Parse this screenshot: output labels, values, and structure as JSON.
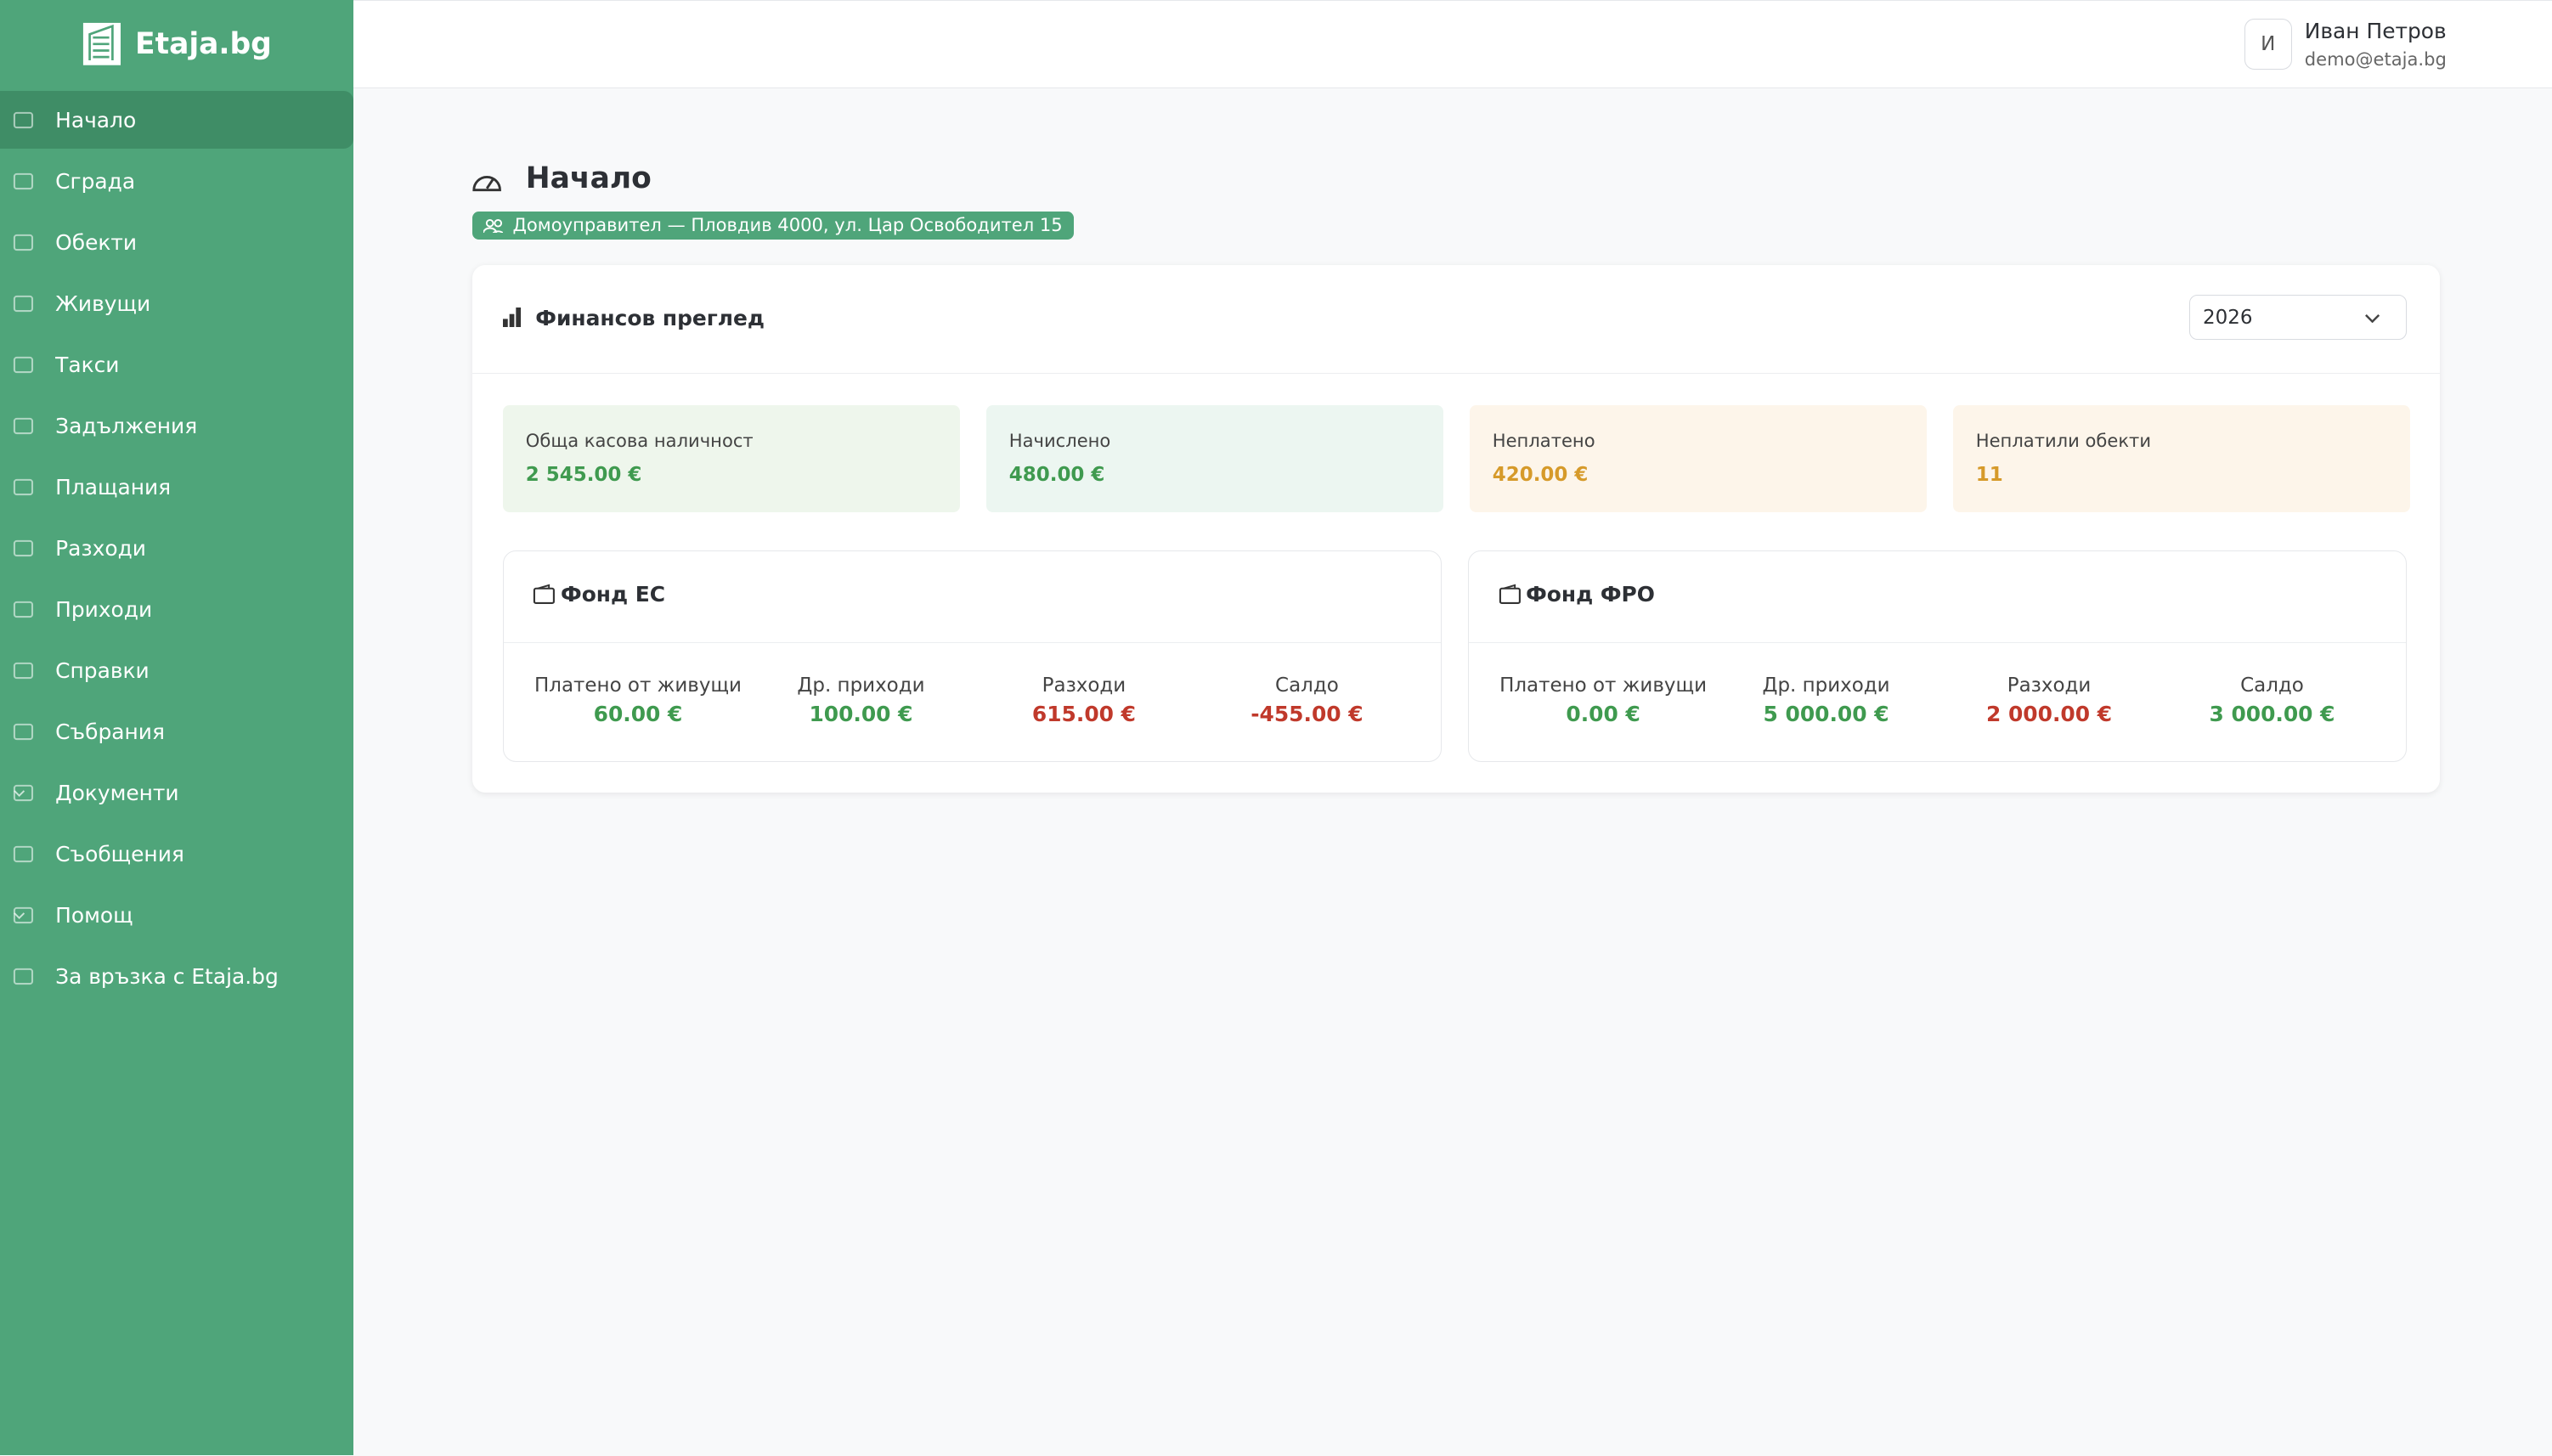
{
  "brand": "Etaja.bg",
  "nav": [
    {
      "label": "Начало",
      "active": true
    },
    {
      "label": "Сграда"
    },
    {
      "label": "Обекти"
    },
    {
      "label": "Живущи"
    },
    {
      "label": "Такси"
    },
    {
      "label": "Задължения"
    },
    {
      "label": "Плащания"
    },
    {
      "label": "Разходи"
    },
    {
      "label": "Приходи"
    },
    {
      "label": "Справки"
    },
    {
      "label": "Събрания"
    },
    {
      "label": "Документи",
      "expandable": true
    },
    {
      "label": "Съобщения"
    },
    {
      "label": "Помощ",
      "expandable": true
    },
    {
      "label": "За връзка с Etaja.bg"
    }
  ],
  "user": {
    "avatar": "И",
    "name": "Иван Петров",
    "email": "demo@etaja.bg"
  },
  "page": {
    "title": "Начало",
    "badge": "Домоуправител — Пловдив 4000, ул. Цар Освободител 15"
  },
  "overview": {
    "title": "Финансов преглед",
    "year": "2026",
    "stats": [
      {
        "label": "Обща касова наличност",
        "value": "2 545.00 €",
        "tone": "green"
      },
      {
        "label": "Начислено",
        "value": "480.00 €",
        "tone": "teal"
      },
      {
        "label": "Неплатено",
        "value": "420.00 €",
        "tone": "orange"
      },
      {
        "label": "Неплатили обекти",
        "value": "11",
        "tone": "orange"
      }
    ],
    "funds": [
      {
        "title": "Фонд ЕС",
        "items": [
          {
            "label": "Платено от живущи",
            "value": "60.00 €",
            "tone": "green"
          },
          {
            "label": "Др. приходи",
            "value": "100.00 €",
            "tone": "green"
          },
          {
            "label": "Разходи",
            "value": "615.00 €",
            "tone": "red"
          },
          {
            "label": "Салдо",
            "value": "-455.00 €",
            "tone": "red"
          }
        ]
      },
      {
        "title": "Фонд ФРО",
        "items": [
          {
            "label": "Платено от живущи",
            "value": "0.00 €",
            "tone": "green"
          },
          {
            "label": "Др. приходи",
            "value": "5 000.00 €",
            "tone": "green"
          },
          {
            "label": "Разходи",
            "value": "2 000.00 €",
            "tone": "red"
          },
          {
            "label": "Салдо",
            "value": "3 000.00 €",
            "tone": "green"
          }
        ]
      }
    ]
  }
}
